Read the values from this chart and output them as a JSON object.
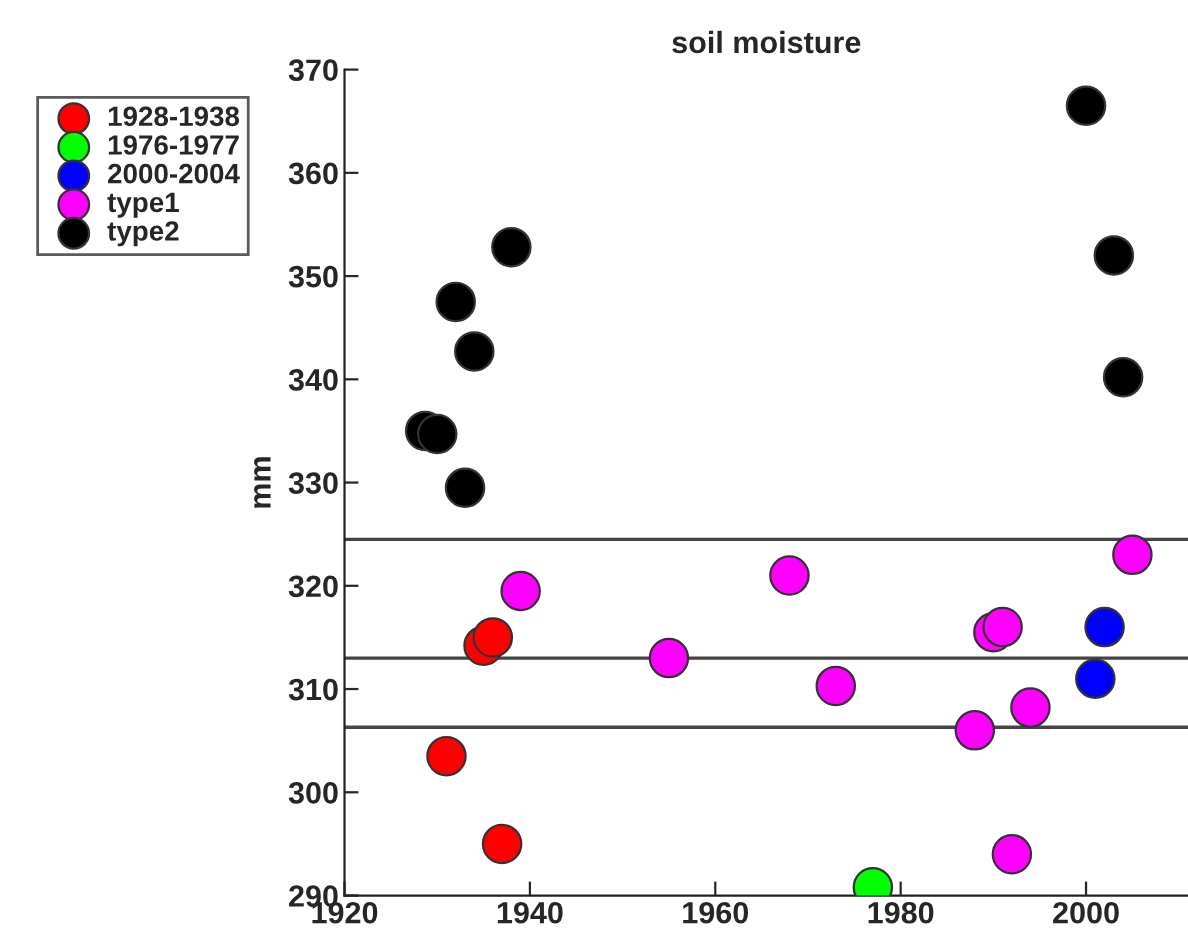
{
  "chart_data": {
    "type": "scatter",
    "title": "soil moisture",
    "ylabel": "mm",
    "xlim": [
      1920,
      2011
    ],
    "xticks": [
      1920,
      1940,
      1960,
      1980,
      2000
    ],
    "ylim": [
      290,
      370
    ],
    "yticks": [
      290,
      300,
      310,
      320,
      330,
      340,
      350,
      360,
      370
    ],
    "grid": false,
    "legend": "top left",
    "series": [
      {
        "name": "1928-1938",
        "color": "#ff0000",
        "x": [
          1931,
          1935,
          1936,
          1937
        ],
        "values": [
          303.5,
          314.2,
          315,
          295
        ]
      },
      {
        "name": "1976-1977",
        "color": "#00ff00",
        "x": [
          1977
        ],
        "values": [
          290.8
        ]
      },
      {
        "name": "2000-2004",
        "color": "#0000ff",
        "x": [
          2002,
          2001
        ],
        "values": [
          316,
          311
        ]
      },
      {
        "name": "type1",
        "color": "#ff00ff",
        "x": [
          1939,
          1955,
          1968,
          1973,
          1988,
          1990,
          1991,
          1992,
          1994,
          2005
        ],
        "values": [
          319.5,
          313,
          321,
          310.3,
          306,
          315.5,
          316,
          294,
          308.2,
          323
        ]
      },
      {
        "name": "type2",
        "color": "#000000",
        "x": [
          1928.7,
          1930,
          1932,
          1933,
          1934,
          1938,
          2000,
          2003,
          2004
        ],
        "values": [
          335,
          334.7,
          347.5,
          329.5,
          342.7,
          352.8,
          366.5,
          352,
          340.2
        ]
      }
    ],
    "ref_lines": [
      {
        "axis": "y",
        "value": 324.5,
        "color": "#444444"
      },
      {
        "axis": "y",
        "value": 313,
        "color": "#444444"
      },
      {
        "axis": "y",
        "value": 306.3,
        "color": "#444444"
      }
    ]
  }
}
